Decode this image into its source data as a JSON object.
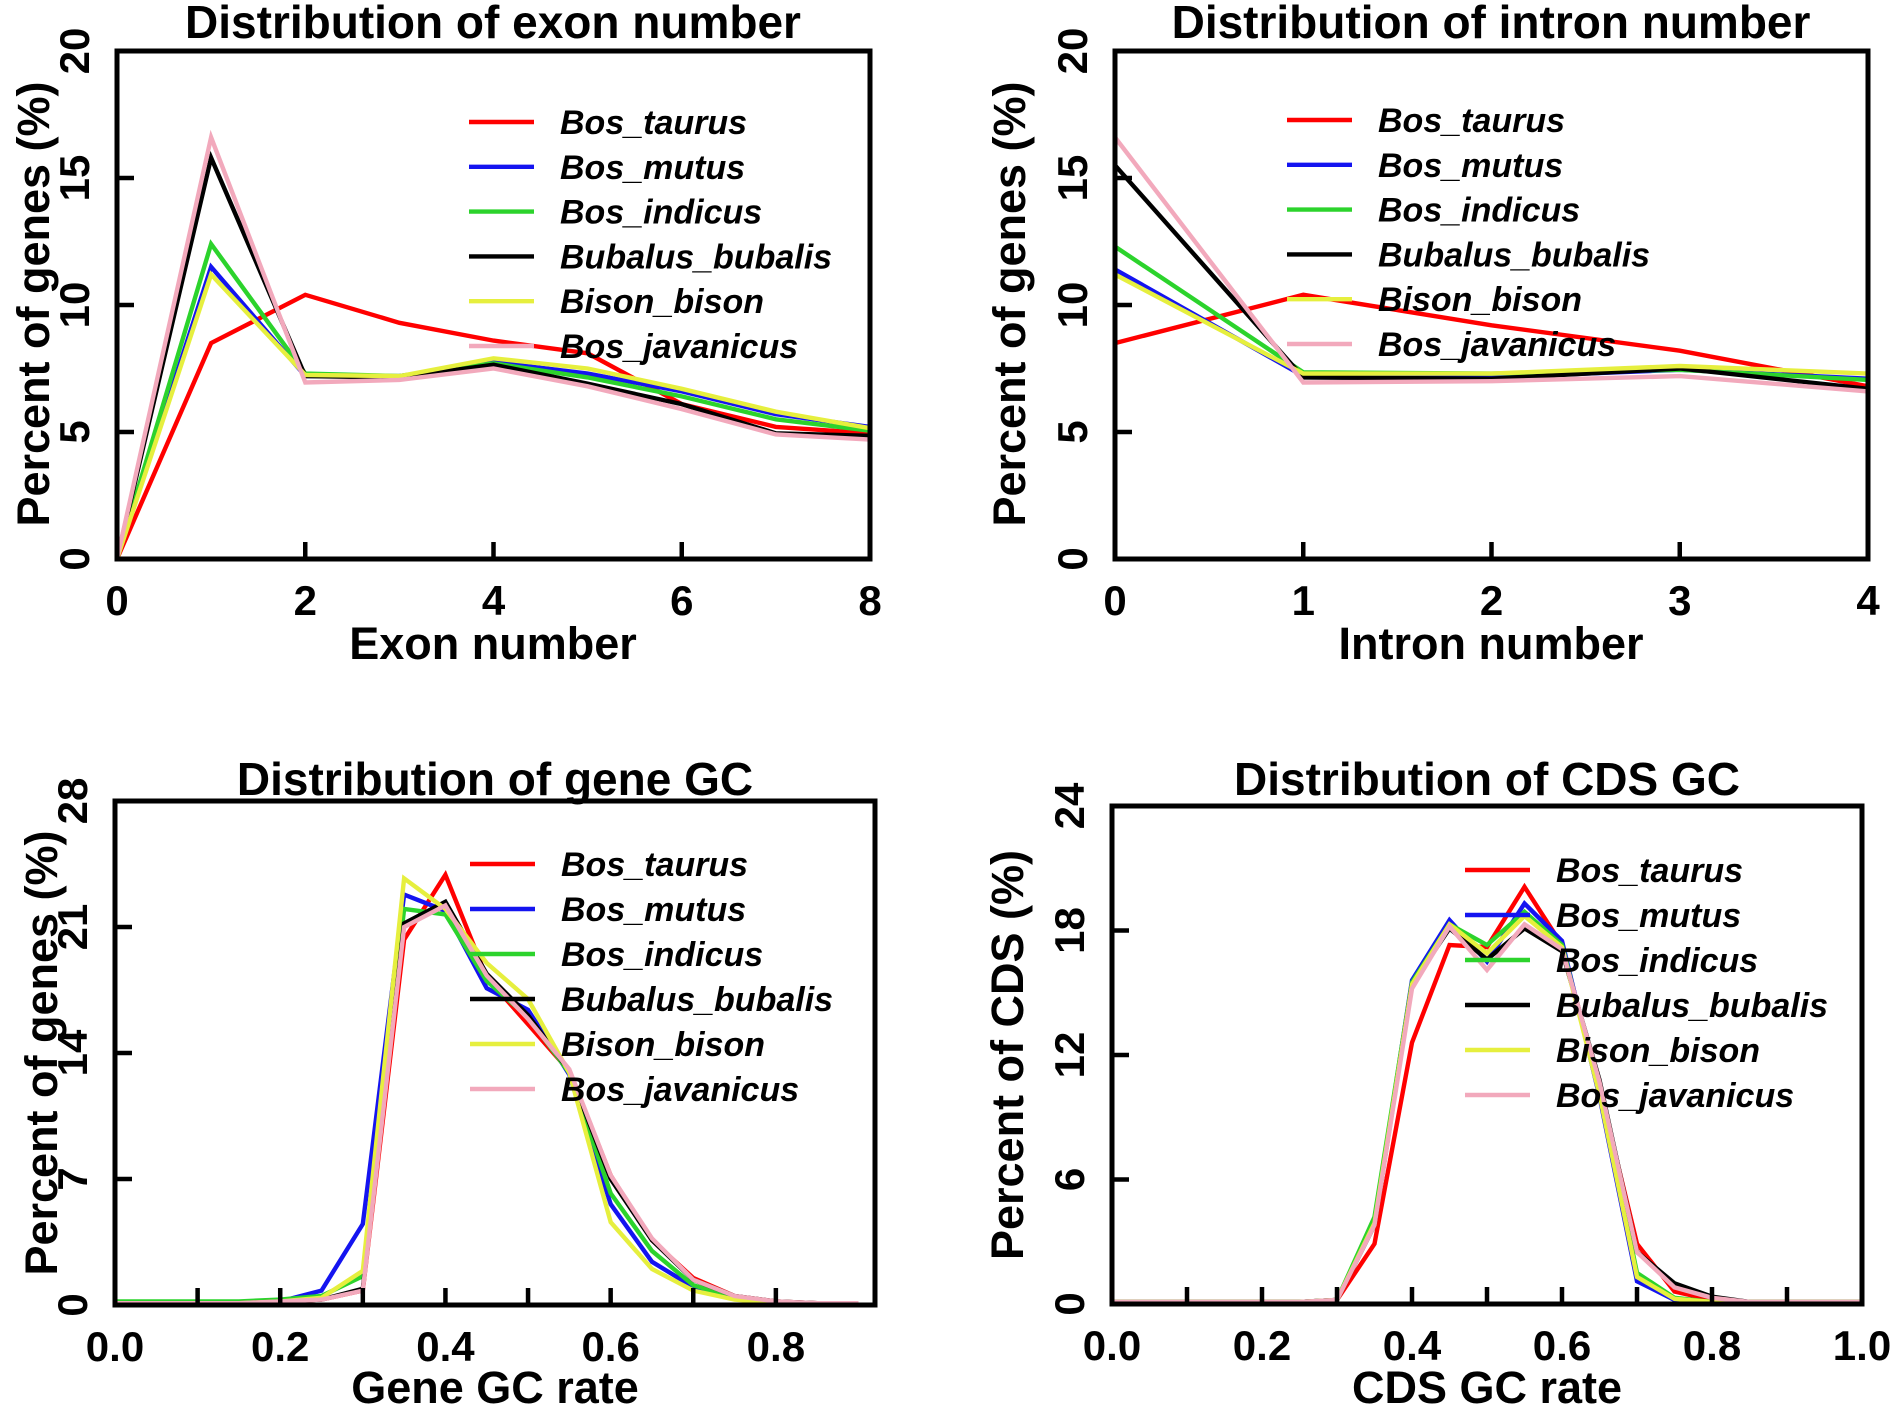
{
  "figure": {
    "background": "#ffffff",
    "text_color": "#000000",
    "species_colors": {
      "Bos_taurus": "#ff0000",
      "Bos_mutus": "#1414f0",
      "Bos_indicus": "#2cd32c",
      "Bubalus_bubalis": "#000000",
      "Bison_bison": "#e6ef3e",
      "Bos_javanicus": "#f2a9bc"
    }
  },
  "chart_data": [
    {
      "type": "line",
      "title": "Distribution of exon number",
      "xlabel": "Exon number",
      "ylabel": "Percent of genes (%)",
      "xlim": [
        0,
        8
      ],
      "ylim": [
        0,
        20
      ],
      "grid": false,
      "legend_position": "upper right inside",
      "x_ticks": [
        {
          "v": 0,
          "label": "0"
        },
        {
          "v": 2,
          "label": "2"
        },
        {
          "v": 4,
          "label": "4"
        },
        {
          "v": 6,
          "label": "6"
        },
        {
          "v": 8,
          "label": "8"
        }
      ],
      "x_minor_ticks": [],
      "y_ticks": [
        {
          "v": 0,
          "label": "0"
        },
        {
          "v": 5,
          "label": "5"
        },
        {
          "v": 10,
          "label": "10"
        },
        {
          "v": 15,
          "label": "15"
        },
        {
          "v": 20,
          "label": "20"
        }
      ],
      "x": [
        0,
        1,
        2,
        3,
        4,
        5,
        6,
        7,
        8
      ],
      "series": [
        {
          "name": "Bos_taurus",
          "color": "#ff0000",
          "values": [
            0,
            8.5,
            10.4,
            9.3,
            8.6,
            8.1,
            6.1,
            5.2,
            4.95
          ]
        },
        {
          "name": "Bos_mutus",
          "color": "#1414f0",
          "values": [
            0,
            11.5,
            7.2,
            7.2,
            7.75,
            7.3,
            6.6,
            5.7,
            5.2
          ]
        },
        {
          "name": "Bos_indicus",
          "color": "#2cd32c",
          "values": [
            0,
            12.4,
            7.3,
            7.2,
            7.7,
            7.15,
            6.4,
            5.5,
            5.05
          ]
        },
        {
          "name": "Bubalus_bubalis",
          "color": "#000000",
          "values": [
            0,
            15.8,
            7.2,
            7.15,
            7.65,
            6.9,
            6.1,
            4.95,
            4.85
          ]
        },
        {
          "name": "Bison_bison",
          "color": "#e6ef3e",
          "values": [
            0,
            11.2,
            7.25,
            7.2,
            7.9,
            7.5,
            6.7,
            5.8,
            5.15
          ]
        },
        {
          "name": "Bos_javanicus",
          "color": "#f2a9bc",
          "values": [
            0,
            16.6,
            6.95,
            7.05,
            7.5,
            6.8,
            5.9,
            4.9,
            4.7
          ]
        }
      ]
    },
    {
      "type": "line",
      "title": "Distribution of intron number",
      "xlabel": "Intron number",
      "ylabel": "Percent of genes (%)",
      "xlim": [
        0,
        4
      ],
      "ylim": [
        0,
        20
      ],
      "grid": false,
      "legend_position": "upper right inside",
      "x_ticks": [
        {
          "v": 0,
          "label": "0"
        },
        {
          "v": 1,
          "label": "1"
        },
        {
          "v": 2,
          "label": "2"
        },
        {
          "v": 3,
          "label": "3"
        },
        {
          "v": 4,
          "label": "4"
        }
      ],
      "x_minor_ticks": [],
      "y_ticks": [
        {
          "v": 0,
          "label": "0"
        },
        {
          "v": 5,
          "label": "5"
        },
        {
          "v": 10,
          "label": "10"
        },
        {
          "v": 15,
          "label": "15"
        },
        {
          "v": 20,
          "label": "20"
        }
      ],
      "x": [
        0,
        1,
        2,
        3,
        4
      ],
      "series": [
        {
          "name": "Bos_taurus",
          "color": "#ff0000",
          "values": [
            8.5,
            10.4,
            9.2,
            8.2,
            6.8
          ]
        },
        {
          "name": "Bos_mutus",
          "color": "#1414f0",
          "values": [
            11.4,
            7.2,
            7.15,
            7.45,
            7.1
          ]
        },
        {
          "name": "Bos_indicus",
          "color": "#2cd32c",
          "values": [
            12.3,
            7.35,
            7.3,
            7.45,
            7.05
          ]
        },
        {
          "name": "Bubalus_bubalis",
          "color": "#000000",
          "values": [
            15.5,
            7.15,
            7.1,
            7.5,
            6.7
          ]
        },
        {
          "name": "Bison_bison",
          "color": "#e6ef3e",
          "values": [
            11.2,
            7.3,
            7.3,
            7.6,
            7.3
          ]
        },
        {
          "name": "Bos_javanicus",
          "color": "#f2a9bc",
          "values": [
            16.6,
            6.95,
            7.0,
            7.2,
            6.6
          ]
        }
      ]
    },
    {
      "type": "line",
      "title": "Distribution of gene GC",
      "xlabel": "Gene GC rate",
      "ylabel": "Percent of genes (%)",
      "xlim": [
        0,
        0.92
      ],
      "ylim": [
        0,
        28
      ],
      "grid": false,
      "legend_position": "upper right inside",
      "x_ticks": [
        {
          "v": 0,
          "label": "0.0"
        },
        {
          "v": 0.2,
          "label": "0.2"
        },
        {
          "v": 0.4,
          "label": "0.4"
        },
        {
          "v": 0.6,
          "label": "0.6"
        },
        {
          "v": 0.8,
          "label": "0.8"
        }
      ],
      "x_minor_ticks": [
        0.1,
        0.3,
        0.5,
        0.7
      ],
      "y_ticks": [
        {
          "v": 0,
          "label": "0"
        },
        {
          "v": 7,
          "label": "7"
        },
        {
          "v": 14,
          "label": "14"
        },
        {
          "v": 21,
          "label": "21"
        },
        {
          "v": 28,
          "label": "28"
        }
      ],
      "x": [
        0,
        0.05,
        0.1,
        0.15,
        0.2,
        0.25,
        0.3,
        0.35,
        0.4,
        0.45,
        0.5,
        0.55,
        0.6,
        0.65,
        0.7,
        0.75,
        0.8,
        0.85,
        0.9
      ],
      "series": [
        {
          "name": "Bos_taurus",
          "color": "#ff0000",
          "values": [
            0.1,
            0.1,
            0.1,
            0.1,
            0.2,
            0.3,
            0.8,
            20.3,
            23.9,
            18.2,
            15.6,
            13.0,
            7.2,
            3.6,
            1.5,
            0.5,
            0.2,
            0.1,
            0.1
          ]
        },
        {
          "name": "Bos_mutus",
          "color": "#1414f0",
          "values": [
            0.1,
            0.1,
            0.1,
            0.1,
            0.2,
            0.8,
            4.5,
            22.8,
            21.9,
            17.6,
            16.4,
            12.8,
            5.6,
            2.4,
            1.0,
            0.4,
            0.1,
            0.1,
            0.1
          ]
        },
        {
          "name": "Bos_indicus",
          "color": "#2cd32c",
          "values": [
            0.2,
            0.2,
            0.2,
            0.2,
            0.3,
            0.5,
            1.6,
            22.0,
            21.7,
            18.0,
            16.0,
            12.9,
            6.2,
            3.0,
            1.1,
            0.4,
            0.1,
            0.1,
            0.1
          ]
        },
        {
          "name": "Bubalus_bubalis",
          "color": "#000000",
          "values": [
            0.1,
            0.1,
            0.1,
            0.1,
            0.2,
            0.3,
            0.9,
            21.2,
            22.4,
            18.4,
            16.1,
            13.0,
            7.0,
            3.6,
            1.4,
            0.5,
            0.2,
            0.1,
            0.1
          ]
        },
        {
          "name": "Bison_bison",
          "color": "#e6ef3e",
          "values": [
            0.1,
            0.1,
            0.1,
            0.1,
            0.2,
            0.4,
            1.9,
            23.7,
            22.0,
            19.0,
            17.0,
            12.9,
            4.6,
            2.0,
            0.8,
            0.3,
            0.1,
            0.1,
            0.1
          ]
        },
        {
          "name": "Bos_javanicus",
          "color": "#f2a9bc",
          "values": [
            0.1,
            0.1,
            0.1,
            0.1,
            0.2,
            0.3,
            0.8,
            21.0,
            22.2,
            18.3,
            15.9,
            13.1,
            7.2,
            3.7,
            1.4,
            0.5,
            0.2,
            0.1,
            0.1
          ]
        }
      ]
    },
    {
      "type": "line",
      "title": "Distribution of CDS GC",
      "xlabel": "CDS GC rate",
      "ylabel": "Percent of CDS (%)",
      "xlim": [
        0,
        1.0
      ],
      "ylim": [
        0,
        24
      ],
      "grid": false,
      "legend_position": "upper right inside",
      "x_ticks": [
        {
          "v": 0,
          "label": "0.0"
        },
        {
          "v": 0.2,
          "label": "0.2"
        },
        {
          "v": 0.4,
          "label": "0.4"
        },
        {
          "v": 0.6,
          "label": "0.6"
        },
        {
          "v": 0.8,
          "label": "0.8"
        },
        {
          "v": 1.0,
          "label": "1.0"
        }
      ],
      "x_minor_ticks": [
        0.1,
        0.3,
        0.5,
        0.7,
        0.9
      ],
      "y_ticks": [
        {
          "v": 0,
          "label": "0"
        },
        {
          "v": 6,
          "label": "6"
        },
        {
          "v": 12,
          "label": "12"
        },
        {
          "v": 18,
          "label": "18"
        },
        {
          "v": 24,
          "label": "24"
        }
      ],
      "x": [
        0,
        0.05,
        0.1,
        0.15,
        0.2,
        0.25,
        0.3,
        0.35,
        0.4,
        0.45,
        0.5,
        0.55,
        0.6,
        0.65,
        0.7,
        0.75,
        0.8,
        0.85,
        0.9,
        0.95,
        1.0
      ],
      "series": [
        {
          "name": "Bos_taurus",
          "color": "#ff0000",
          "values": [
            0.1,
            0.1,
            0.1,
            0.1,
            0.1,
            0.1,
            0.2,
            2.9,
            12.6,
            17.3,
            17.2,
            20.1,
            17.3,
            10.4,
            2.9,
            0.6,
            0.2,
            0.1,
            0.1,
            0.1,
            0.1
          ]
        },
        {
          "name": "Bos_mutus",
          "color": "#1414f0",
          "values": [
            0.1,
            0.1,
            0.1,
            0.1,
            0.1,
            0.1,
            0.2,
            3.9,
            15.6,
            18.5,
            16.5,
            19.3,
            17.5,
            10.0,
            1.1,
            0.2,
            0.1,
            0.1,
            0.1,
            0.1,
            0.1
          ]
        },
        {
          "name": "Bos_indicus",
          "color": "#2cd32c",
          "values": [
            0.1,
            0.1,
            0.1,
            0.1,
            0.1,
            0.1,
            0.2,
            4.2,
            15.5,
            18.3,
            17.3,
            18.9,
            17.3,
            10.2,
            1.5,
            0.3,
            0.1,
            0.1,
            0.1,
            0.1,
            0.1
          ]
        },
        {
          "name": "Bubalus_bubalis",
          "color": "#000000",
          "values": [
            0.1,
            0.1,
            0.1,
            0.1,
            0.1,
            0.1,
            0.2,
            3.8,
            15.4,
            18.1,
            16.6,
            18.1,
            17.0,
            10.8,
            2.5,
            1.0,
            0.35,
            0.1,
            0.1,
            0.1,
            0.1
          ]
        },
        {
          "name": "Bison_bison",
          "color": "#e6ef3e",
          "values": [
            0.1,
            0.1,
            0.1,
            0.1,
            0.1,
            0.1,
            0.2,
            3.9,
            15.4,
            18.3,
            16.9,
            18.7,
            17.2,
            10.1,
            1.3,
            0.25,
            0.1,
            0.1,
            0.1,
            0.1,
            0.1
          ]
        },
        {
          "name": "Bos_javanicus",
          "color": "#f2a9bc",
          "values": [
            0.1,
            0.1,
            0.1,
            0.1,
            0.1,
            0.1,
            0.2,
            3.8,
            15.2,
            18.2,
            16.1,
            18.3,
            17.1,
            10.7,
            2.5,
            0.8,
            0.3,
            0.1,
            0.1,
            0.1,
            0.1
          ]
        }
      ]
    }
  ]
}
